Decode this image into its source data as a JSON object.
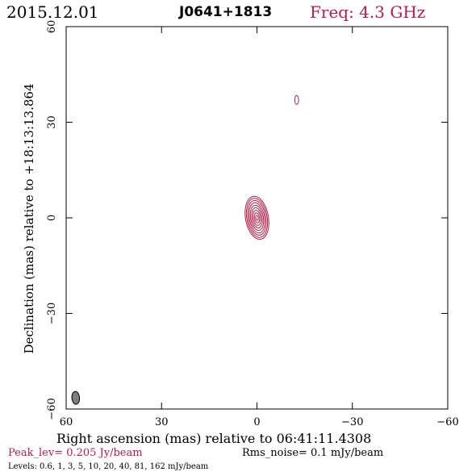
{
  "header": {
    "date": "2015.12.01",
    "source": "J0641+1813",
    "freq": "Freq: 4.3 GHz"
  },
  "footer": {
    "peak": "Peak_lev=  0.205 Jy/beam",
    "rms": "Rms_noise=  0.1 mJy/beam",
    "levels": "Levels: 0.6,    1,    3,    5,   10,   20,   40,   81,  162 mJy/beam"
  },
  "colors": {
    "contour": "#b0204a",
    "beam_fill": "#808080",
    "axis": "#000000"
  },
  "chart_data": {
    "type": "contour",
    "xlabel": "Right ascension (mas) relative to 06:41:11.4308",
    "ylabel": "Declination (mas) relative to +18:13:13.864",
    "xlim": [
      60,
      -60
    ],
    "ylim": [
      -60,
      60
    ],
    "x_ticks": [
      60,
      30,
      0,
      -30,
      -60
    ],
    "y_ticks": [
      -60,
      -30,
      0,
      30,
      60
    ],
    "x_tick_labels": [
      "60",
      "30",
      "0",
      "−30",
      "−60"
    ],
    "y_tick_labels": [
      "−60",
      "−30",
      "0",
      "30",
      "60"
    ],
    "levels_mJy": [
      0.6,
      1,
      3,
      5,
      10,
      20,
      40,
      81,
      162
    ],
    "components": [
      {
        "x": 0,
        "y": 0,
        "contours": [
          {
            "rx": 3.6,
            "ry": 6.8,
            "angle": -10
          },
          {
            "rx": 3.2,
            "ry": 6.2,
            "angle": -10
          },
          {
            "rx": 2.8,
            "ry": 5.5,
            "angle": -10
          },
          {
            "rx": 2.4,
            "ry": 4.8,
            "angle": -10
          },
          {
            "rx": 2.0,
            "ry": 4.0,
            "angle": -10
          },
          {
            "rx": 1.6,
            "ry": 3.2,
            "angle": -10
          },
          {
            "rx": 1.2,
            "ry": 2.4,
            "angle": -10
          },
          {
            "rx": 0.8,
            "ry": 1.6,
            "angle": -10
          },
          {
            "rx": 0.4,
            "ry": 0.8,
            "angle": -10
          }
        ]
      },
      {
        "x": -12.5,
        "y": 37,
        "contours": [
          {
            "rx": 0.6,
            "ry": 1.4,
            "angle": 0
          }
        ]
      }
    ],
    "beam": {
      "x": 57,
      "y": -56.5,
      "rx": 1.2,
      "ry": 2.0,
      "angle": -5
    }
  }
}
